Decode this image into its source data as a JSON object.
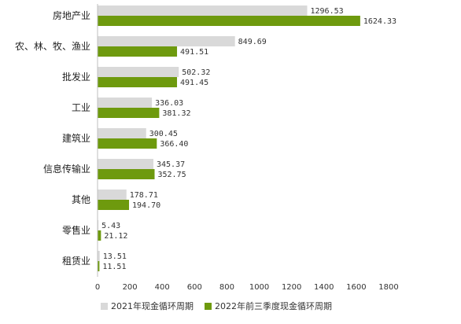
{
  "chart_data": {
    "type": "bar",
    "orientation": "horizontal",
    "title": "",
    "xlabel": "",
    "ylabel": "",
    "xlim": [
      0,
      1800
    ],
    "x_ticks": [
      0,
      200,
      400,
      600,
      800,
      1000,
      1200,
      1400,
      1600,
      1800
    ],
    "grid": false,
    "legend_position": "bottom",
    "categories": [
      "房地产业",
      "农、林、牧、渔业",
      "批发业",
      "工业",
      "建筑业",
      "信息传输业",
      "其他",
      "零售业",
      "租赁业"
    ],
    "series": [
      {
        "name": "2021年现金循环周期",
        "color": "#d9d9d9",
        "values": [
          1296.53,
          849.69,
          502.32,
          336.03,
          300.45,
          345.37,
          178.71,
          5.43,
          13.51
        ],
        "labels": [
          "1296.53",
          "849.69",
          "502.32",
          "336.03",
          "300.45",
          "345.37",
          "178.71",
          "5.43",
          "13.51"
        ]
      },
      {
        "name": "2022年前三季度现金循环周期",
        "color": "#6e9a0e",
        "values": [
          1624.33,
          491.51,
          491.45,
          381.32,
          366.4,
          352.75,
          194.7,
          21.12,
          11.51
        ],
        "labels": [
          "1624.33",
          "491.51",
          "491.45",
          "381.32",
          "366.40",
          "352.75",
          "194.70",
          "21.12",
          "11.51"
        ]
      }
    ]
  }
}
